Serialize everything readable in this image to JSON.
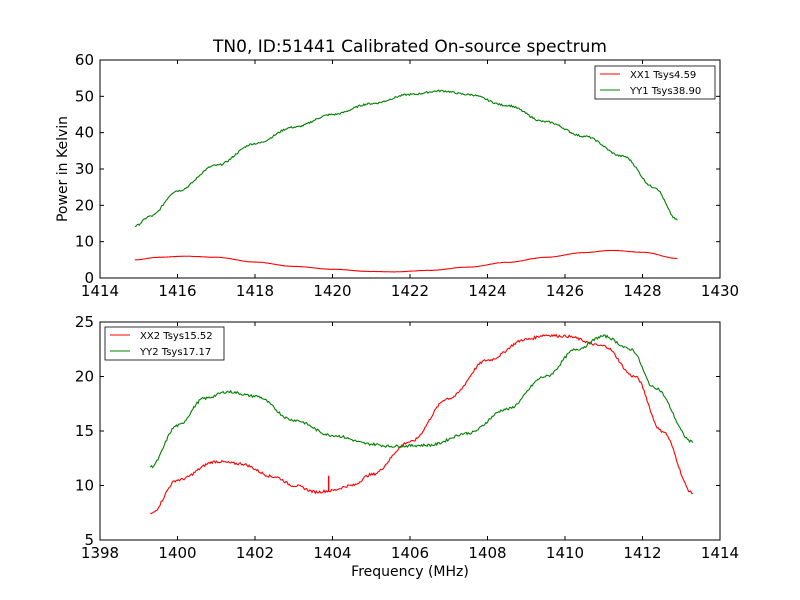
{
  "chart_data": [
    {
      "type": "line",
      "title": "TN0, ID:51441 Calibrated On-source spectrum",
      "xlabel": "",
      "ylabel": "Power in Kelvin",
      "xlim": [
        1414,
        1430
      ],
      "ylim": [
        0,
        60
      ],
      "xticks": [
        "1414",
        "1416",
        "1418",
        "1420",
        "1422",
        "1424",
        "1426",
        "1428",
        "1430"
      ],
      "yticks": [
        "0",
        "10",
        "20",
        "30",
        "40",
        "50",
        "60"
      ],
      "legend_position": "top-right",
      "grid": false,
      "series": [
        {
          "name": "XX1 Tsys4.59",
          "color": "#ff0000",
          "noise": 0.03,
          "x": [
            1414.9,
            1415.5,
            1416.2,
            1417.0,
            1418.0,
            1419.0,
            1420.0,
            1421.0,
            1421.6,
            1422.5,
            1423.5,
            1424.5,
            1425.5,
            1426.5,
            1427.2,
            1428.0,
            1428.9
          ],
          "values": [
            5.0,
            5.7,
            6.0,
            5.7,
            4.4,
            3.2,
            2.4,
            1.8,
            1.7,
            2.1,
            3.0,
            4.3,
            5.7,
            7.0,
            7.6,
            7.1,
            5.4
          ]
        },
        {
          "name": "YY1 Tsys38.90",
          "color": "#008000",
          "noise": 0.25,
          "x": [
            1414.9,
            1415.3,
            1416.0,
            1417.0,
            1418.0,
            1419.0,
            1420.0,
            1421.0,
            1422.0,
            1422.8,
            1423.5,
            1424.5,
            1425.5,
            1426.5,
            1427.5,
            1428.3,
            1428.9
          ],
          "values": [
            14.3,
            17.0,
            24.0,
            31.0,
            37.0,
            41.5,
            45.0,
            48.0,
            50.5,
            51.5,
            50.5,
            47.5,
            43.0,
            39.0,
            33.5,
            25.0,
            16.0
          ]
        }
      ]
    },
    {
      "type": "line",
      "title": "",
      "xlabel": "Frequency (MHz)",
      "ylabel": "",
      "xlim": [
        1398,
        1414
      ],
      "ylim": [
        5,
        25
      ],
      "xticks": [
        "1398",
        "1400",
        "1402",
        "1404",
        "1406",
        "1408",
        "1410",
        "1412",
        "1414"
      ],
      "yticks": [
        "5",
        "10",
        "15",
        "20",
        "25"
      ],
      "legend_position": "top-left",
      "grid": false,
      "series": [
        {
          "name": "XX2 Tsys15.52",
          "color": "#ff0000",
          "noise": 0.12,
          "x": [
            1399.3,
            1400.0,
            1401.0,
            1401.6,
            1402.5,
            1403.0,
            1403.6,
            1403.9,
            1404.5,
            1405.0,
            1406.0,
            1407.0,
            1408.0,
            1409.0,
            1409.5,
            1410.0,
            1411.0,
            1411.8,
            1412.5,
            1413.3
          ],
          "values": [
            7.4,
            10.5,
            12.2,
            12.0,
            10.8,
            10.0,
            9.4,
            9.5,
            10.0,
            11.0,
            14.0,
            18.0,
            21.5,
            23.4,
            23.8,
            23.7,
            22.8,
            20.0,
            15.0,
            9.3
          ],
          "spike": {
            "x": 1403.9,
            "top": 10.9
          }
        },
        {
          "name": "YY2 Tsys17.17",
          "color": "#008000",
          "noise": 0.12,
          "x": [
            1399.3,
            1400.0,
            1400.7,
            1401.3,
            1402.0,
            1403.0,
            1404.0,
            1405.0,
            1405.5,
            1406.5,
            1407.5,
            1408.5,
            1409.5,
            1410.3,
            1411.0,
            1411.7,
            1412.3,
            1413.3
          ],
          "values": [
            11.7,
            15.5,
            18.0,
            18.6,
            18.2,
            16.0,
            14.6,
            13.8,
            13.6,
            13.7,
            14.8,
            17.0,
            20.0,
            22.5,
            23.7,
            22.5,
            19.0,
            14.0
          ]
        }
      ]
    }
  ]
}
